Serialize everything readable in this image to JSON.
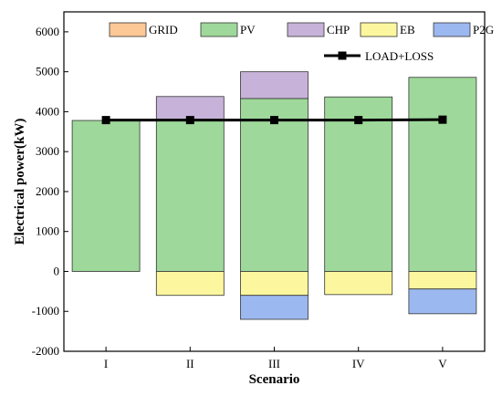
{
  "chart_data": {
    "type": "bar",
    "stacked": true,
    "xlabel": "Scenario",
    "ylabel": "Electrical power(kW)",
    "ylim": [
      -2000,
      6500
    ],
    "yticks": [
      -2000,
      -1000,
      0,
      1000,
      2000,
      3000,
      4000,
      5000,
      6000
    ],
    "categories": [
      "I",
      "II",
      "III",
      "IV",
      "V"
    ],
    "series": [
      {
        "name": "GRID",
        "color": "#fcc896",
        "values": [
          0,
          0,
          0,
          0,
          0
        ]
      },
      {
        "name": "PV",
        "color": "#9ed89a",
        "values": [
          3780,
          3780,
          4330,
          4370,
          4860
        ]
      },
      {
        "name": "CHP",
        "color": "#c7b3d9",
        "values": [
          0,
          600,
          670,
          0,
          0
        ]
      },
      {
        "name": "EB",
        "color": "#fcf79e",
        "values": [
          0,
          -600,
          -600,
          -580,
          -440
        ]
      },
      {
        "name": "P2G",
        "color": "#9cb8f0",
        "values": [
          0,
          0,
          -600,
          0,
          -620
        ]
      }
    ],
    "line": {
      "name": "LOAD+LOSS",
      "color": "#000000",
      "values": [
        3790,
        3790,
        3790,
        3790,
        3800
      ]
    },
    "legend_position": "top"
  }
}
